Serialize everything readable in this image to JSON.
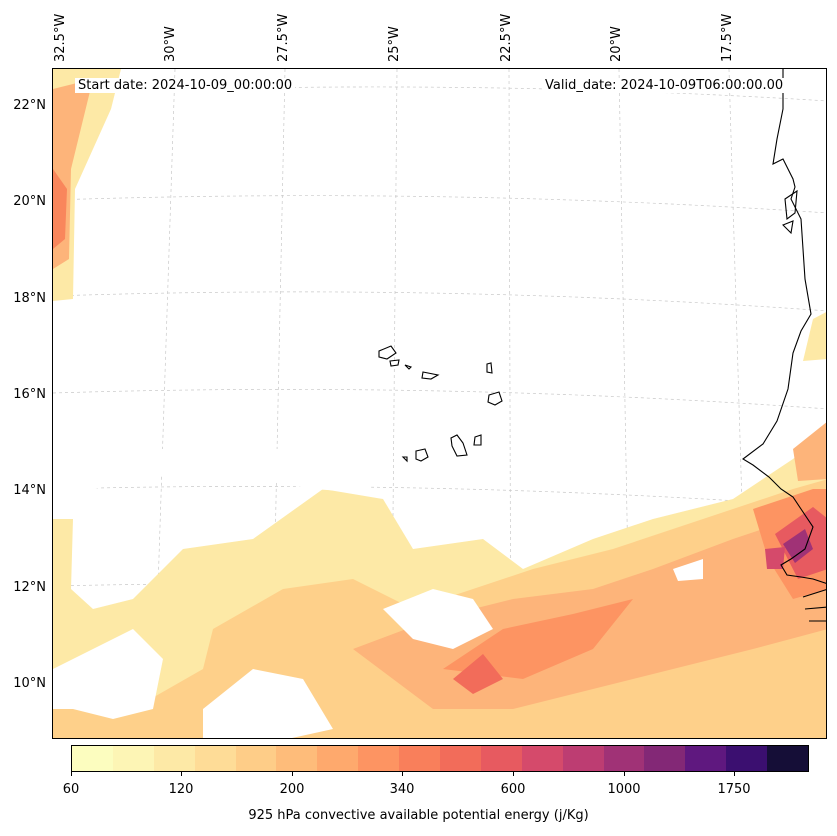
{
  "header": {
    "start_date": "Start date: 2024-10-09_00:00:00",
    "valid_date": "Valid_date: 2024-10-09T06:00:00.00"
  },
  "axes": {
    "lat_labels": [
      "22°N",
      "20°N",
      "18°N",
      "16°N",
      "14°N",
      "12°N",
      "10°N"
    ],
    "lon_labels": [
      "32.5°W",
      "30°W",
      "27.5°W",
      "25°W",
      "22.5°W",
      "20°W",
      "17.5°W"
    ]
  },
  "colorbar": {
    "label": "925 hPa convective available potential energy (j/Kg)",
    "ticks": [
      "60",
      "120",
      "200",
      "340",
      "600",
      "1000",
      "1750"
    ],
    "colors": [
      "#fcfdbf",
      "#fdf5b5",
      "#fde9a6",
      "#fedc97",
      "#fecd88",
      "#febc7a",
      "#fea96d",
      "#fd9462",
      "#f97f5b",
      "#f26c5a",
      "#e75a60",
      "#d54a6b",
      "#bd3d72",
      "#a03276",
      "#832876",
      "#5f187f",
      "#3b0f70",
      "#150e37"
    ]
  },
  "colors": {
    "coast": "#000000",
    "grid": "#c8c8c8",
    "cape_low": "#fde9a6",
    "cape_mid": "#fdb47a",
    "cape_high": "#f26c5a",
    "cape_peak": "#a03276"
  }
}
